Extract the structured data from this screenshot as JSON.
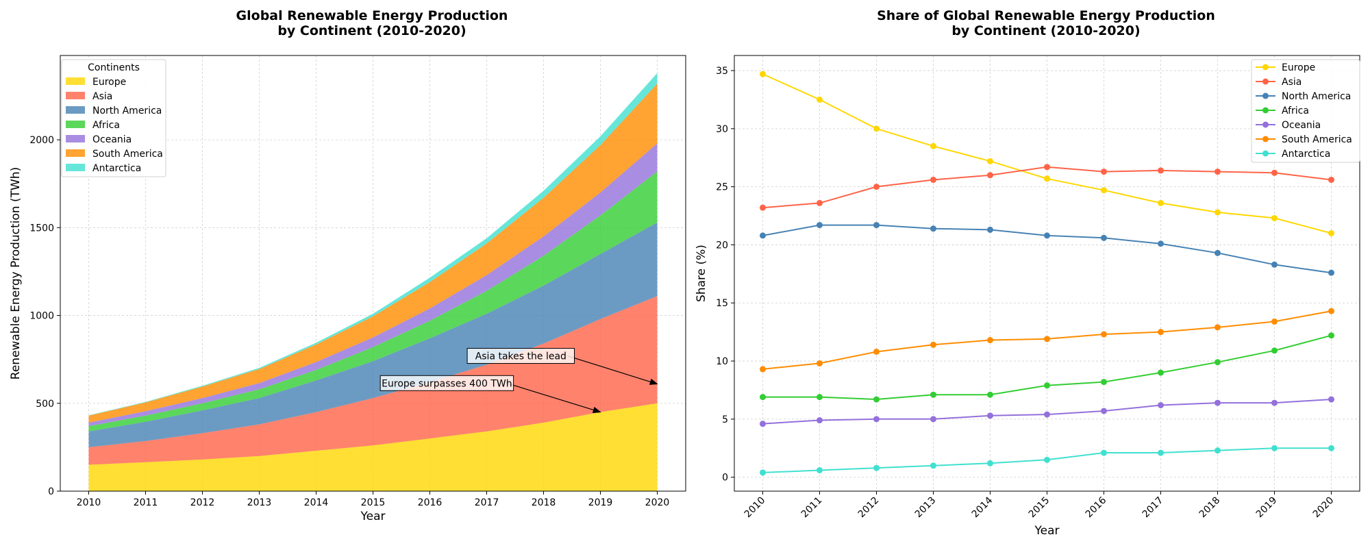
{
  "chart_data": [
    {
      "type": "area",
      "stacked": true,
      "title": [
        "Global Renewable Energy Production",
        "by Continent (2010-2020)"
      ],
      "xlabel": "Year",
      "ylabel": "Renewable Energy Production (TWh)",
      "x": [
        2010,
        2011,
        2012,
        2013,
        2014,
        2015,
        2016,
        2017,
        2018,
        2019,
        2020
      ],
      "ylim": [
        0,
        2480
      ],
      "yticks": [
        0,
        500,
        1000,
        1500,
        2000
      ],
      "grid": true,
      "legend": {
        "title": "Continents",
        "placement": "top-left"
      },
      "series": [
        {
          "name": "Europe",
          "color": "#FFD700",
          "values": [
            150,
            165,
            180,
            200,
            230,
            260,
            300,
            340,
            390,
            450,
            500
          ]
        },
        {
          "name": "Asia",
          "color": "#FF6347",
          "values": [
            100,
            120,
            150,
            180,
            220,
            270,
            320,
            380,
            450,
            530,
            610
          ]
        },
        {
          "name": "North America",
          "color": "#4682B4",
          "values": [
            90,
            110,
            130,
            150,
            180,
            210,
            250,
            290,
            330,
            370,
            420
          ]
        },
        {
          "name": "Africa",
          "color": "#32CD32",
          "values": [
            30,
            35,
            40,
            50,
            60,
            80,
            100,
            130,
            170,
            220,
            290
          ]
        },
        {
          "name": "Oceania",
          "color": "#9370DB",
          "values": [
            20,
            25,
            30,
            35,
            45,
            55,
            70,
            90,
            110,
            130,
            160
          ]
        },
        {
          "name": "South America",
          "color": "#FF8C00",
          "values": [
            40,
            50,
            65,
            80,
            100,
            120,
            150,
            180,
            220,
            270,
            340
          ]
        },
        {
          "name": "Antarctica",
          "color": "#40E0D0",
          "values": [
            2,
            3,
            5,
            7,
            10,
            15,
            25,
            30,
            40,
            50,
            60
          ]
        }
      ],
      "annotations": [
        {
          "text": "Asia takes the lead",
          "text_at": [
            2017.6,
            770
          ],
          "point_at": [
            2020,
            610
          ]
        },
        {
          "text": "Europe surpasses 400 TWh",
          "text_at": [
            2016.3,
            615
          ],
          "point_at": [
            2019,
            450
          ]
        }
      ]
    },
    {
      "type": "line",
      "title": [
        "Share of Global Renewable Energy Production",
        "by Continent (2010-2020)"
      ],
      "xlabel": "Year",
      "ylabel": "Share (%)",
      "x": [
        2010,
        2011,
        2012,
        2013,
        2014,
        2015,
        2016,
        2017,
        2018,
        2019,
        2020
      ],
      "ylim": [
        -1.2,
        36.3
      ],
      "yticks": [
        0,
        5,
        10,
        15,
        20,
        25,
        30,
        35
      ],
      "grid": true,
      "legend": {
        "placement": "top-right"
      },
      "series": [
        {
          "name": "Europe",
          "color": "#FFD700",
          "values": [
            34.7,
            32.5,
            30.0,
            28.5,
            27.2,
            25.7,
            24.7,
            23.6,
            22.8,
            22.3,
            21.0
          ]
        },
        {
          "name": "Asia",
          "color": "#FF6347",
          "values": [
            23.2,
            23.6,
            25.0,
            25.6,
            26.0,
            26.7,
            26.3,
            26.4,
            26.3,
            26.2,
            25.6
          ]
        },
        {
          "name": "North America",
          "color": "#4682B4",
          "values": [
            20.8,
            21.7,
            21.7,
            21.4,
            21.3,
            20.8,
            20.6,
            20.1,
            19.3,
            18.3,
            17.6
          ]
        },
        {
          "name": "Africa",
          "color": "#32CD32",
          "values": [
            6.9,
            6.9,
            6.7,
            7.1,
            7.1,
            7.9,
            8.2,
            9.0,
            9.9,
            10.9,
            12.2
          ]
        },
        {
          "name": "Oceania",
          "color": "#9370DB",
          "values": [
            4.6,
            4.9,
            5.0,
            5.0,
            5.3,
            5.4,
            5.7,
            6.2,
            6.4,
            6.4,
            6.7
          ]
        },
        {
          "name": "South America",
          "color": "#FF8C00",
          "values": [
            9.3,
            9.8,
            10.8,
            11.4,
            11.8,
            11.9,
            12.3,
            12.5,
            12.9,
            13.4,
            14.3
          ]
        },
        {
          "name": "Antarctica",
          "color": "#40E0D0",
          "values": [
            0.4,
            0.6,
            0.8,
            1.0,
            1.2,
            1.5,
            2.1,
            2.1,
            2.3,
            2.5,
            2.5
          ]
        }
      ]
    }
  ]
}
